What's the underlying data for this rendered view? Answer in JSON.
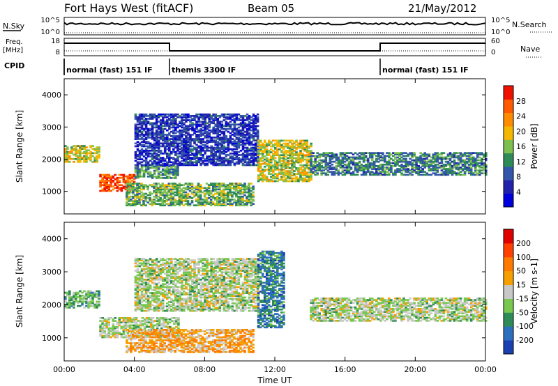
{
  "header": {
    "radar": "Fort Hays West (fitACF)",
    "beam": "Beam 05",
    "date": "21/May/2012"
  },
  "control_panel": {
    "nsky_label": "N.Sky",
    "nsearch_label": "N.Search",
    "freq_label_line1": "Freq.",
    "freq_label_line2": "[MHz]",
    "nave_label": "Nave",
    "cpid_label": "CPID",
    "nsky_ticks": [
      "10^5",
      "10^0"
    ],
    "nsearch_ticks": [
      "10^5",
      "10^0"
    ],
    "freq_ticks": [
      "18",
      "8"
    ],
    "nave_ticks": [
      "60",
      "0"
    ]
  },
  "cpid_segments": [
    {
      "label": "normal (fast) 151 IF",
      "start_h": 0,
      "end_h": 6
    },
    {
      "label": "themis 3300 IF",
      "start_h": 6,
      "end_h": 18
    },
    {
      "label": "normal (fast) 151 IF",
      "start_h": 18,
      "end_h": 24
    }
  ],
  "chart_data": [
    {
      "type": "heatmap",
      "name": "power",
      "ylabel": "Slant Range [km]",
      "xlabel": "",
      "xlim": [
        0,
        24
      ],
      "ylim": [
        300,
        4500
      ],
      "x_ticks": [
        "00:00",
        "04:00",
        "08:00",
        "12:00",
        "16:00",
        "20:00",
        "00:00"
      ],
      "y_ticks": [
        1000,
        2000,
        3000,
        4000
      ],
      "colorbar": {
        "label": "Power [dB]",
        "ticks": [
          "4",
          "8",
          "12",
          "16",
          "20",
          "24",
          "28"
        ],
        "colors": [
          "#0000dd",
          "#2222aa",
          "#3355aa",
          "#2e8b57",
          "#7fbf4f",
          "#f5b800",
          "#ff8c00",
          "#ff5a00",
          "#ee1100"
        ]
      },
      "bands": [
        {
          "start_h": 0.0,
          "end_h": 2.0,
          "range_lo": 1900,
          "range_hi": 2400,
          "level": 0.55
        },
        {
          "start_h": 2.0,
          "end_h": 4.0,
          "range_lo": 1000,
          "range_hi": 1500,
          "level": 0.85
        },
        {
          "start_h": 4.0,
          "end_h": 6.5,
          "range_lo": 1400,
          "range_hi": 1800,
          "level": 0.4
        },
        {
          "start_h": 3.5,
          "end_h": 10.8,
          "range_lo": 550,
          "range_hi": 1250,
          "level": 0.45
        },
        {
          "start_h": 4.0,
          "end_h": 11.0,
          "range_lo": 1800,
          "range_hi": 3400,
          "level": 0.2
        },
        {
          "start_h": 11.0,
          "end_h": 14.0,
          "range_lo": 1300,
          "range_hi": 2600,
          "level": 0.55
        },
        {
          "start_h": 14.0,
          "end_h": 24.0,
          "range_lo": 1500,
          "range_hi": 2200,
          "level": 0.35
        }
      ]
    },
    {
      "type": "heatmap",
      "name": "velocity",
      "ylabel": "Slant Range [km]",
      "xlabel": "Time UT",
      "xlim": [
        0,
        24
      ],
      "ylim": [
        300,
        4500
      ],
      "x_ticks": [
        "00:00",
        "04:00",
        "08:00",
        "12:00",
        "16:00",
        "20:00",
        "00:00"
      ],
      "y_ticks": [
        1000,
        2000,
        3000,
        4000
      ],
      "colorbar": {
        "label": "Velocity [m s-1]",
        "ticks": [
          "200",
          "100",
          "50",
          "15",
          "-15",
          "-50",
          "-100",
          "-200"
        ],
        "colors": [
          "#1a3fb0",
          "#2d6fbf",
          "#2e8b57",
          "#78c850",
          "#c8c8c8",
          "#f5a000",
          "#ff7a00",
          "#ff4000",
          "#e00000"
        ]
      },
      "bands": [
        {
          "start_h": 0.0,
          "end_h": 2.0,
          "range_lo": 1900,
          "range_hi": 2400,
          "level": 0.35
        },
        {
          "start_h": 2.0,
          "end_h": 6.5,
          "range_lo": 1000,
          "range_hi": 1600,
          "level": 0.45
        },
        {
          "start_h": 3.5,
          "end_h": 10.8,
          "range_lo": 550,
          "range_hi": 1250,
          "level": 0.62
        },
        {
          "start_h": 4.0,
          "end_h": 11.0,
          "range_lo": 1800,
          "range_hi": 3400,
          "level": 0.45
        },
        {
          "start_h": 11.0,
          "end_h": 12.5,
          "range_lo": 1300,
          "range_hi": 3600,
          "level": 0.22
        },
        {
          "start_h": 14.0,
          "end_h": 24.0,
          "range_lo": 1500,
          "range_hi": 2200,
          "level": 0.45
        }
      ]
    }
  ]
}
